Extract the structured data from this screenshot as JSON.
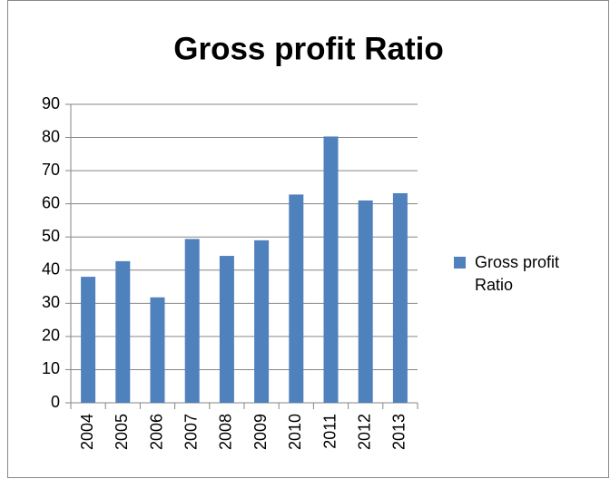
{
  "chart_data": {
    "type": "bar",
    "title": "Gross profit Ratio",
    "categories": [
      "2004",
      "2005",
      "2006",
      "2007",
      "2008",
      "2009",
      "2010",
      "2011",
      "2012",
      "2013"
    ],
    "series": [
      {
        "name": "Gross profit Ratio",
        "color": "#4f81bd",
        "values": [
          38,
          42.7,
          31.8,
          49.4,
          44.3,
          49,
          62.8,
          80.3,
          61,
          63.2
        ]
      }
    ],
    "ylim": [
      0,
      90
    ],
    "yticks": [
      0,
      10,
      20,
      30,
      40,
      50,
      60,
      70,
      80,
      90
    ],
    "grid": true,
    "legend": "right"
  }
}
